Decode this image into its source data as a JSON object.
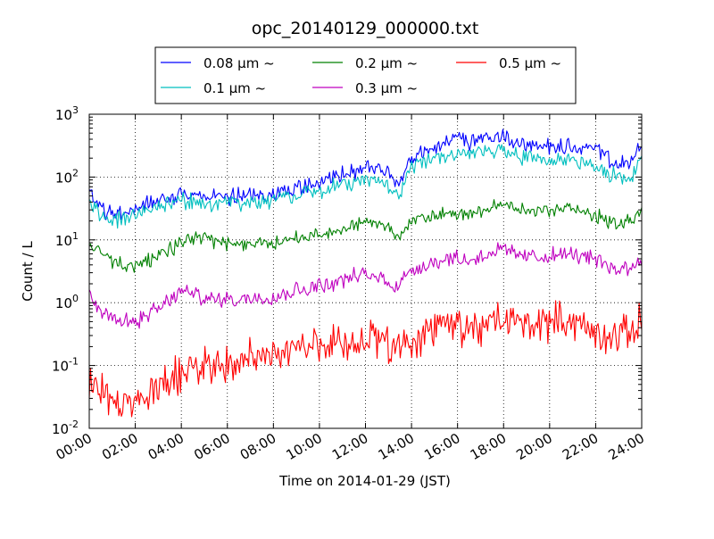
{
  "chart_data": {
    "type": "line",
    "title": "opc_20140129_000000.txt",
    "xlabel": "Time on 2014-01-29 (JST)",
    "ylabel": "Count / L",
    "x_unit": "hours",
    "xlim": [
      0,
      24
    ],
    "ylim": [
      0.01,
      1000
    ],
    "yscale": "log",
    "grid": true,
    "legend_position": "top-center, above plot",
    "x_ticks": [
      "00:00",
      "02:00",
      "04:00",
      "06:00",
      "08:00",
      "10:00",
      "12:00",
      "14:00",
      "16:00",
      "18:00",
      "20:00",
      "22:00",
      "24:00"
    ],
    "y_ticks": [
      {
        "base": "10",
        "exp": "-2"
      },
      {
        "base": "10",
        "exp": "-1"
      },
      {
        "base": "10",
        "exp": "0"
      },
      {
        "base": "10",
        "exp": "1"
      },
      {
        "base": "10",
        "exp": "2"
      },
      {
        "base": "10",
        "exp": "3"
      }
    ],
    "series": [
      {
        "name": "0.08 μm ~",
        "color": "#0000ff",
        "noise": 0.08,
        "x": [
          0,
          0.3,
          0.7,
          1,
          1.5,
          2,
          2.5,
          3,
          3.5,
          4,
          4.5,
          5,
          5.5,
          6,
          6.5,
          7,
          7.5,
          8,
          8.5,
          9,
          9.5,
          10,
          10.5,
          11,
          11.5,
          12,
          12.3,
          12.7,
          13,
          13.3,
          13.5,
          13.7,
          14,
          14.3,
          14.7,
          15,
          15.3,
          15.7,
          16,
          16.3,
          16.5,
          16.7,
          17,
          17.3,
          17.7,
          18,
          18.5,
          19,
          19.5,
          20,
          20.5,
          21,
          21.5,
          22,
          22.5,
          23,
          23.5,
          24
        ],
        "y": [
          60,
          40,
          28,
          25,
          28,
          32,
          38,
          45,
          48,
          55,
          50,
          48,
          48,
          50,
          48,
          50,
          52,
          55,
          60,
          65,
          70,
          80,
          95,
          110,
          120,
          140,
          150,
          130,
          110,
          90,
          80,
          130,
          200,
          220,
          270,
          300,
          320,
          380,
          420,
          400,
          280,
          380,
          420,
          430,
          420,
          440,
          350,
          320,
          320,
          310,
          320,
          300,
          280,
          270,
          200,
          160,
          170,
          300
        ]
      },
      {
        "name": "0.1 μm ~",
        "color": "#00bfbf",
        "noise": 0.08,
        "x": [
          0,
          0.3,
          0.7,
          1,
          1.5,
          2,
          2.5,
          3,
          3.5,
          4,
          4.5,
          5,
          5.5,
          6,
          6.5,
          7,
          7.5,
          8,
          8.5,
          9,
          9.5,
          10,
          10.5,
          11,
          11.5,
          12,
          12.3,
          12.7,
          13,
          13.3,
          13.5,
          13.7,
          14,
          14.3,
          14.7,
          15,
          15.3,
          15.7,
          16,
          16.3,
          16.5,
          16.7,
          17,
          17.3,
          17.7,
          18,
          18.5,
          19,
          19.5,
          20,
          20.5,
          21,
          21.5,
          22,
          22.5,
          23,
          23.5,
          24
        ],
        "y": [
          45,
          30,
          22,
          19,
          22,
          26,
          30,
          35,
          38,
          42,
          40,
          38,
          38,
          40,
          38,
          40,
          42,
          45,
          48,
          52,
          55,
          60,
          68,
          75,
          82,
          90,
          95,
          85,
          70,
          55,
          48,
          90,
          150,
          160,
          190,
          200,
          210,
          230,
          250,
          240,
          200,
          240,
          260,
          270,
          260,
          270,
          220,
          200,
          200,
          190,
          200,
          185,
          170,
          160,
          120,
          100,
          100,
          180
        ]
      },
      {
        "name": "0.2 μm ~",
        "color": "#008000",
        "noise": 0.07,
        "x": [
          0,
          0.5,
          1,
          1.5,
          2,
          2.5,
          3,
          3.5,
          4,
          4.5,
          5,
          5.5,
          6,
          6.5,
          7,
          7.5,
          8,
          8.5,
          9,
          9.5,
          10,
          10.5,
          11,
          11.5,
          12,
          12.5,
          13,
          13.3,
          13.7,
          14,
          14.5,
          15,
          15.5,
          16,
          16.5,
          17,
          17.5,
          18,
          18.5,
          19,
          19.5,
          20,
          20.5,
          21,
          21.5,
          22,
          22.5,
          23,
          23.5,
          24
        ],
        "y": [
          9,
          6,
          4.5,
          4,
          3.8,
          4.5,
          5.5,
          7,
          9,
          11,
          10,
          9.5,
          9,
          8.5,
          8.5,
          9,
          8.5,
          10,
          11,
          11,
          12,
          13,
          15,
          17,
          18,
          20,
          16,
          12,
          14,
          20,
          22,
          24,
          26,
          28,
          26,
          30,
          34,
          35,
          32,
          30,
          30,
          29,
          30,
          31,
          28,
          25,
          20,
          18,
          22,
          28
        ]
      },
      {
        "name": "0.3 μm ~",
        "color": "#bf00bf",
        "noise": 0.08,
        "x": [
          0,
          0.3,
          0.7,
          1,
          1.5,
          2,
          2.5,
          3,
          3.5,
          4,
          4.5,
          5,
          5.5,
          6,
          6.5,
          7,
          7.5,
          8,
          8.5,
          9,
          9.5,
          10,
          10.5,
          11,
          11.5,
          12,
          12.5,
          13,
          13.3,
          13.7,
          14,
          14.5,
          15,
          15.5,
          16,
          16.5,
          17,
          17.5,
          18,
          18.5,
          19,
          19.5,
          20,
          20.5,
          21,
          21.5,
          22,
          22.5,
          23,
          23.5,
          24
        ],
        "y": [
          1.3,
          0.9,
          0.7,
          0.6,
          0.5,
          0.5,
          0.6,
          0.8,
          1.1,
          1.5,
          1.4,
          1.2,
          1.1,
          1.2,
          1.1,
          1.2,
          1.3,
          1.2,
          1.4,
          1.6,
          1.7,
          1.9,
          2.0,
          2.3,
          2.6,
          2.8,
          2.5,
          2.2,
          1.8,
          2.5,
          3.5,
          3.8,
          4.5,
          5.0,
          5.2,
          4.6,
          5.5,
          6.5,
          7.0,
          6.0,
          5.5,
          5.3,
          5.5,
          6.0,
          5.8,
          5.5,
          4.8,
          3.8,
          3.5,
          3.5,
          5.5
        ]
      },
      {
        "name": "0.5 μm ~",
        "color": "#ff0000",
        "noise": 0.18,
        "x": [
          0,
          0.5,
          1,
          1.5,
          2,
          2.5,
          3,
          3.5,
          4,
          4.5,
          5,
          5.5,
          6,
          6.5,
          7,
          7.5,
          8,
          8.5,
          9,
          9.5,
          10,
          10.5,
          11,
          11.5,
          12,
          12.5,
          13,
          13.5,
          14,
          14.5,
          15,
          15.5,
          16,
          16.5,
          17,
          17.5,
          18,
          18.5,
          19,
          19.5,
          20,
          20.5,
          21,
          21.5,
          22,
          22.5,
          23,
          23.5,
          24
        ],
        "y": [
          0.05,
          0.04,
          0.03,
          0.025,
          0.025,
          0.03,
          0.04,
          0.06,
          0.08,
          0.1,
          0.1,
          0.1,
          0.11,
          0.12,
          0.13,
          0.14,
          0.15,
          0.17,
          0.18,
          0.2,
          0.2,
          0.22,
          0.25,
          0.25,
          0.24,
          0.26,
          0.2,
          0.18,
          0.25,
          0.3,
          0.35,
          0.4,
          0.42,
          0.38,
          0.4,
          0.45,
          0.55,
          0.5,
          0.45,
          0.5,
          0.5,
          0.55,
          0.5,
          0.4,
          0.3,
          0.28,
          0.3,
          0.35,
          0.5
        ]
      }
    ]
  }
}
